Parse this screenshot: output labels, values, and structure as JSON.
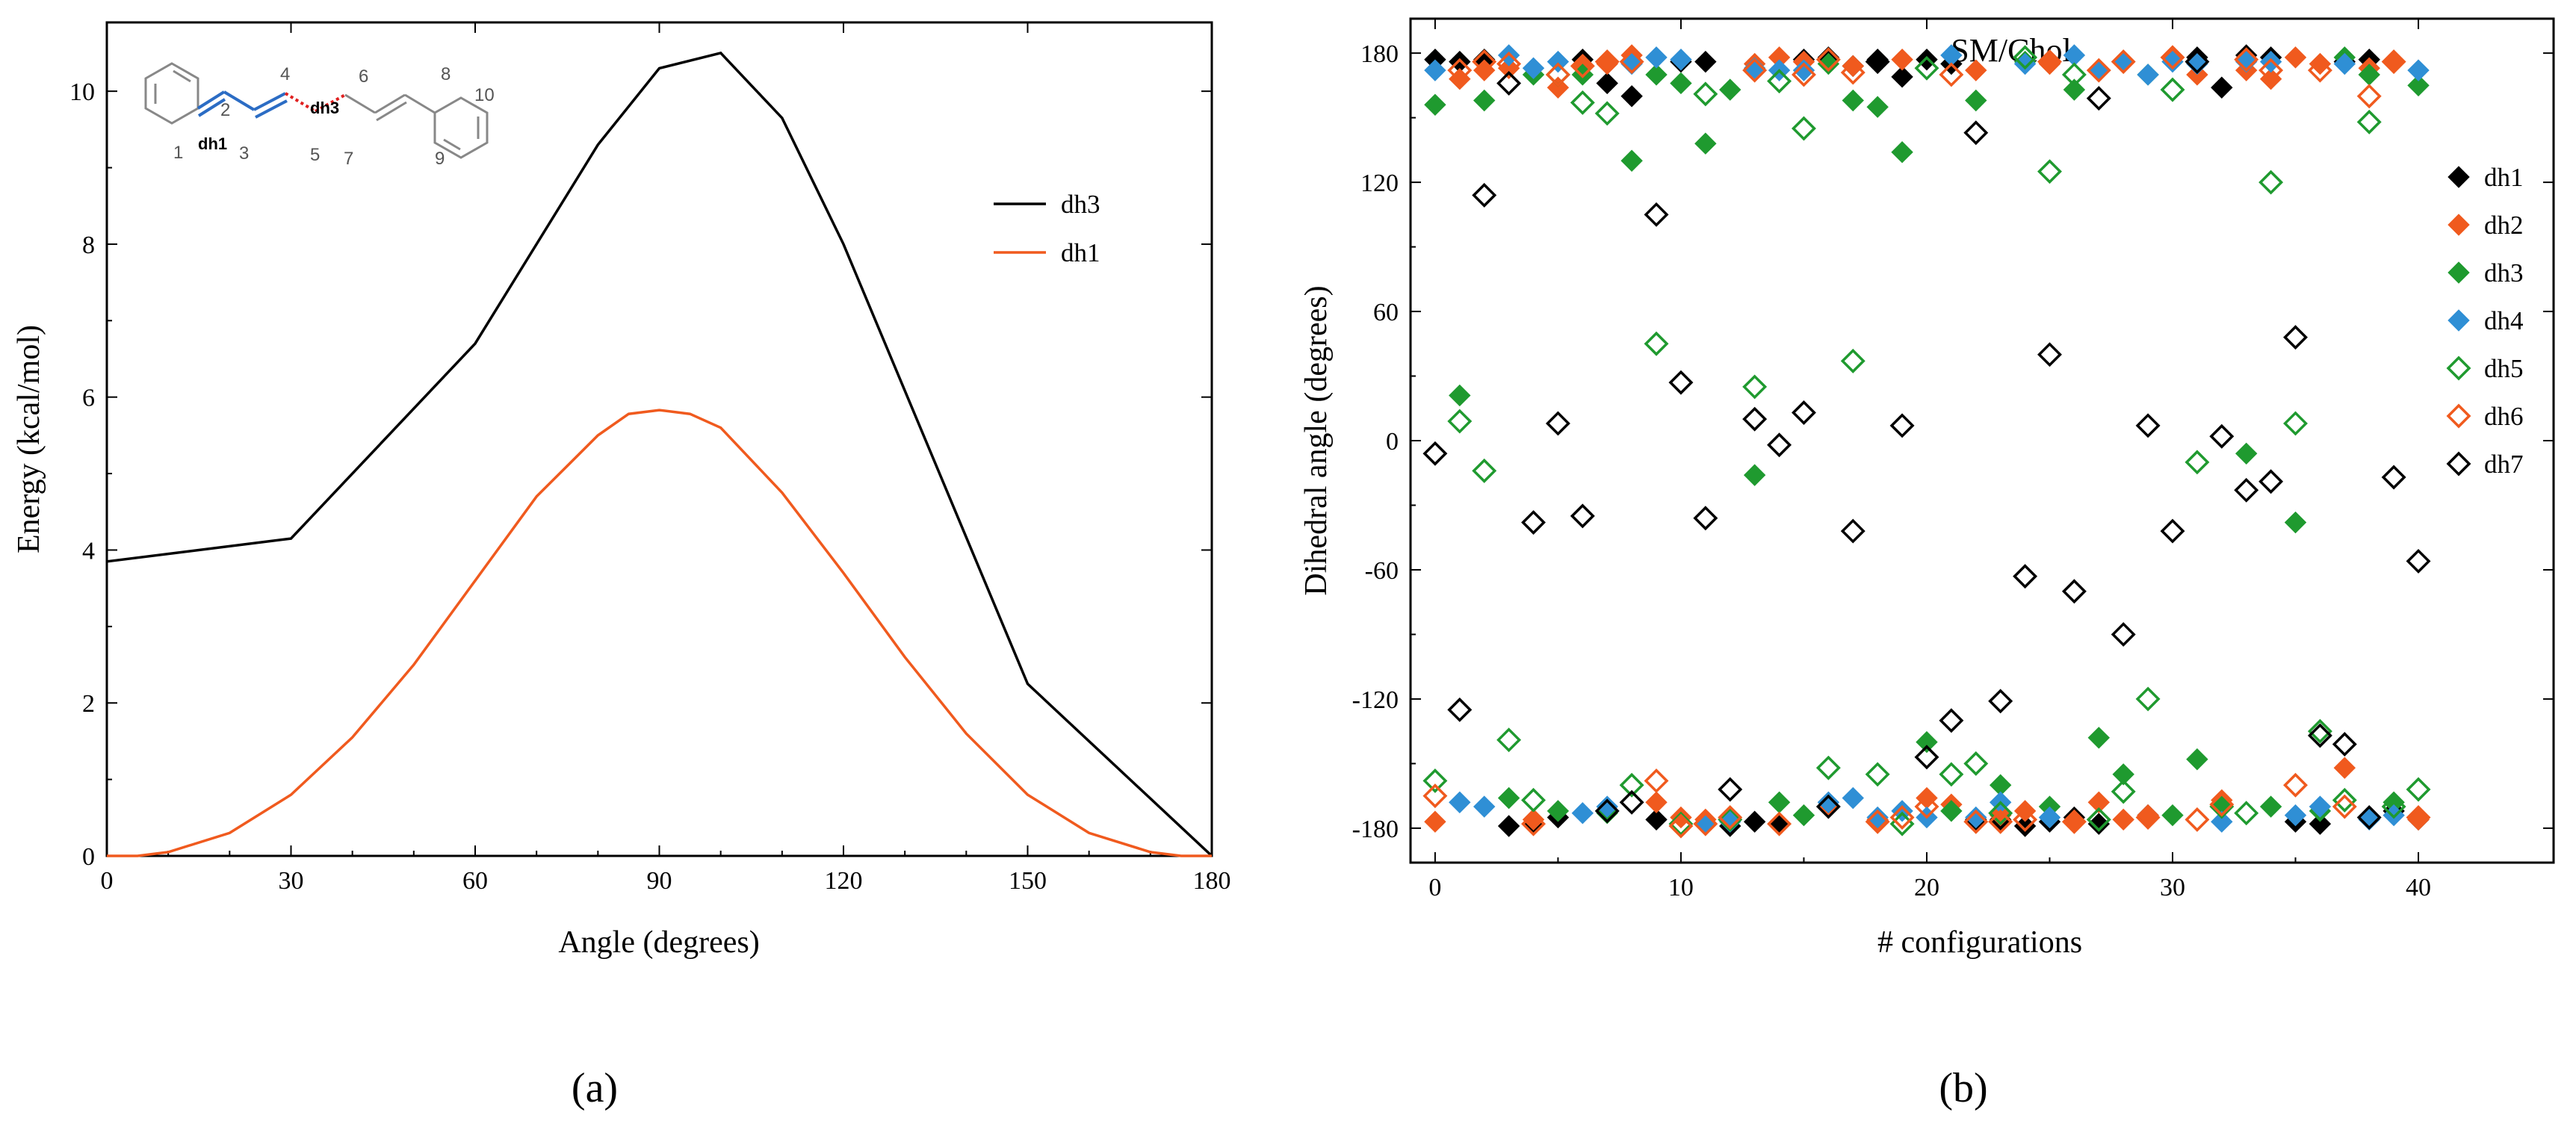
{
  "panel_a_label": "(a)",
  "panel_b_label": "(b)",
  "molecule": {
    "numbers": [
      "1",
      "2",
      "3",
      "4",
      "5",
      "6",
      "7",
      "8",
      "9",
      "10"
    ],
    "dh1_label": "dh1",
    "dh3_label": "dh3",
    "dh1_color": "#2b6cc4",
    "dh3_color": "#e02020"
  },
  "chart_data": [
    {
      "type": "line",
      "title": "",
      "xlabel": "Angle (degrees)",
      "ylabel": "Energy (kcal/mol)",
      "xlim": [
        0,
        180
      ],
      "ylim": [
        0,
        10.9
      ],
      "xticks": [
        0,
        30,
        60,
        90,
        120,
        150,
        180
      ],
      "yticks": [
        0,
        2,
        4,
        6,
        8,
        10
      ],
      "legend_position": "right",
      "series": [
        {
          "name": "dh3",
          "color": "#000000",
          "x": [
            0,
            30,
            60,
            80,
            90,
            100,
            110,
            120,
            150,
            180
          ],
          "y": [
            3.85,
            4.15,
            6.7,
            9.3,
            10.3,
            10.5,
            9.65,
            8.0,
            2.25,
            0.0
          ]
        },
        {
          "name": "dh1",
          "color": "#f05a1e",
          "x": [
            0,
            5,
            10,
            20,
            30,
            40,
            50,
            60,
            70,
            80,
            85,
            90,
            95,
            100,
            110,
            120,
            130,
            140,
            150,
            160,
            170,
            175,
            180
          ],
          "y": [
            0,
            0,
            0.05,
            0.3,
            0.8,
            1.55,
            2.5,
            3.6,
            4.7,
            5.5,
            5.78,
            5.83,
            5.78,
            5.6,
            4.75,
            3.7,
            2.6,
            1.6,
            0.8,
            0.3,
            0.05,
            0,
            0
          ]
        }
      ]
    },
    {
      "type": "scatter",
      "title": "SM/Chol",
      "xlabel": "# configurations",
      "ylabel": "Dihedral angle (degrees)",
      "xlim": [
        -1,
        45.5
      ],
      "ylim": [
        -196,
        196
      ],
      "xticks": [
        0,
        10,
        20,
        30,
        40
      ],
      "yticks": [
        -180,
        -120,
        -60,
        0,
        60,
        120,
        180
      ],
      "legend_position": "right",
      "series": [
        {
          "name": "dh1",
          "color": "#000000",
          "marker": "filled-diamond",
          "x": [
            0,
            1,
            2,
            3,
            4,
            5,
            6,
            7,
            8,
            9,
            10,
            11,
            12,
            13,
            14,
            15,
            16,
            17,
            18,
            19,
            20,
            21,
            22,
            23,
            24,
            25,
            26,
            27,
            28,
            29,
            30,
            31,
            32,
            33,
            34,
            35,
            36,
            37,
            38,
            39,
            40
          ],
          "y": [
            177,
            176,
            177,
            -179,
            -178,
            -175,
            177,
            166,
            160,
            -176,
            176,
            176,
            -179,
            -177,
            -178,
            177,
            178,
            174,
            177,
            169,
            177,
            175,
            -176,
            -176,
            -179,
            -177,
            -175,
            -178,
            176,
            -174,
            178,
            178,
            164,
            179,
            178,
            -177,
            -178,
            176,
            177,
            -172,
            -176
          ]
        },
        {
          "name": "dh2",
          "color": "#f05a1e",
          "marker": "filled-diamond",
          "x": [
            0,
            1,
            2,
            3,
            4,
            5,
            6,
            7,
            8,
            9,
            10,
            11,
            12,
            13,
            14,
            15,
            16,
            17,
            18,
            19,
            20,
            21,
            22,
            23,
            24,
            25,
            26,
            27,
            28,
            29,
            30,
            31,
            32,
            33,
            34,
            35,
            36,
            37,
            38,
            39,
            40
          ],
          "y": [
            -177,
            168,
            172,
            173,
            -176,
            164,
            174,
            175,
            179,
            -168,
            -175,
            -176,
            -175,
            175,
            178,
            176,
            -170,
            174,
            -176,
            177,
            -166,
            -169,
            172,
            -174,
            -172,
            175,
            -177,
            -168,
            -176,
            -174,
            178,
            170,
            -167,
            172,
            168,
            178,
            175,
            -152,
            173,
            176,
            -176
          ]
        },
        {
          "name": "dh3",
          "color": "#1f9a2f",
          "marker": "filled-diamond",
          "x": [
            0,
            1,
            2,
            3,
            4,
            5,
            6,
            7,
            8,
            9,
            10,
            11,
            12,
            13,
            14,
            15,
            16,
            17,
            18,
            19,
            20,
            21,
            22,
            23,
            24,
            25,
            26,
            27,
            28,
            29,
            30,
            31,
            32,
            33,
            34,
            35,
            36,
            37,
            38,
            39,
            40
          ],
          "y": [
            156,
            21,
            158,
            -166,
            170,
            -172,
            170,
            -173,
            130,
            170,
            166,
            138,
            163,
            -16,
            -168,
            -174,
            175,
            158,
            155,
            134,
            -140,
            -172,
            158,
            -160,
            176,
            -170,
            163,
            -138,
            -155,
            170,
            -174,
            -148,
            -170,
            -6,
            -170,
            -38,
            -172,
            178,
            170,
            -168,
            165
          ]
        },
        {
          "name": "dh4",
          "color": "#2f8fd5",
          "marker": "filled-diamond",
          "x": [
            0,
            1,
            2,
            3,
            4,
            5,
            6,
            7,
            8,
            9,
            10,
            11,
            12,
            13,
            14,
            15,
            16,
            17,
            18,
            19,
            20,
            21,
            22,
            23,
            24,
            25,
            26,
            27,
            28,
            29,
            30,
            31,
            32,
            33,
            34,
            35,
            36,
            37,
            38,
            39,
            40
          ],
          "y": [
            172,
            -168,
            -170,
            179,
            173,
            176,
            -173,
            -170,
            175,
            178,
            177,
            -178,
            -177,
            173,
            172,
            172,
            -168,
            -166,
            -175,
            -172,
            -175,
            179,
            -175,
            -168,
            175,
            -175,
            179,
            172,
            176,
            170,
            176,
            175,
            -177,
            176,
            176,
            -174,
            -170,
            175,
            -176,
            -174,
            172
          ]
        },
        {
          "name": "dh5",
          "color": "#1f9a2f",
          "marker": "open-diamond",
          "x": [
            0,
            1,
            2,
            3,
            4,
            5,
            6,
            7,
            8,
            9,
            10,
            11,
            12,
            13,
            14,
            15,
            16,
            17,
            18,
            19,
            20,
            21,
            22,
            23,
            24,
            25,
            26,
            27,
            28,
            29,
            30,
            31,
            32,
            33,
            34,
            35,
            36,
            37,
            38,
            39,
            40
          ],
          "y": [
            -158,
            9,
            -14,
            -139,
            -167,
            170,
            157,
            152,
            -160,
            45,
            -178,
            161,
            -176,
            25,
            167,
            145,
            -152,
            37,
            -155,
            -178,
            173,
            -155,
            -150,
            -173,
            178,
            125,
            170,
            -176,
            -163,
            -120,
            163,
            -10,
            -170,
            -173,
            120,
            8,
            -135,
            -167,
            148,
            -170,
            -162
          ]
        },
        {
          "name": "dh6",
          "color": "#f05a1e",
          "marker": "open-diamond",
          "x": [
            0,
            1,
            2,
            3,
            4,
            5,
            6,
            7,
            8,
            9,
            10,
            11,
            12,
            13,
            14,
            15,
            16,
            17,
            18,
            19,
            20,
            21,
            22,
            23,
            24,
            25,
            26,
            27,
            28,
            29,
            30,
            31,
            32,
            33,
            34,
            35,
            36,
            37,
            38,
            39,
            40
          ],
          "y": [
            -165,
            172,
            176,
            175,
            -178,
            170,
            174,
            176,
            176,
            -158,
            -179,
            -178,
            -175,
            172,
            -178,
            170,
            177,
            171,
            -177,
            -175,
            -170,
            170,
            -177,
            -177,
            -176,
            176,
            -177,
            172,
            176,
            -175,
            178,
            -176,
            -169,
            177,
            172,
            -160,
            172,
            -170,
            160,
            176,
            -175
          ]
        },
        {
          "name": "dh7",
          "color": "#000000",
          "marker": "open-diamond",
          "x": [
            0,
            1,
            2,
            3,
            4,
            5,
            6,
            7,
            8,
            9,
            10,
            11,
            12,
            13,
            14,
            15,
            16,
            17,
            18,
            19,
            20,
            21,
            22,
            23,
            24,
            25,
            26,
            27,
            28,
            29,
            30,
            31,
            32,
            33,
            34,
            35,
            36,
            37,
            38,
            39,
            40
          ],
          "y": [
            -6,
            -125,
            114,
            166,
            -38,
            8,
            -35,
            -172,
            -168,
            105,
            27,
            -36,
            -162,
            10,
            -2,
            13,
            -170,
            -42,
            176,
            7,
            -147,
            -130,
            143,
            -121,
            -63,
            40,
            -70,
            159,
            -90,
            7,
            -42,
            176,
            2,
            -23,
            -19,
            48,
            -137,
            -141,
            -175,
            -17,
            -56
          ]
        }
      ]
    }
  ]
}
